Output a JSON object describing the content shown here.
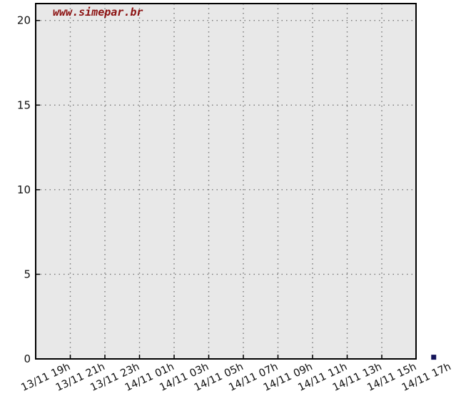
{
  "chart_data": {
    "type": "line",
    "title": "",
    "xlabel": "",
    "ylabel": "",
    "ylim": [
      0,
      21
    ],
    "yticks": [
      0,
      5,
      10,
      15,
      20
    ],
    "x_categories": [
      "13/11 19h",
      "13/11 21h",
      "13/11 23h",
      "14/11 01h",
      "14/11 03h",
      "14/11 05h",
      "14/11 07h",
      "14/11 09h",
      "14/11 11h",
      "14/11 13h",
      "14/11 15h",
      "14/11 17h"
    ],
    "grid": true,
    "series": [
      {
        "values": [
          {
            "x": "14/11 16h",
            "y": 0.1
          }
        ]
      }
    ]
  },
  "watermark": {
    "text": "www.simepar.br",
    "color": "#8b1010"
  },
  "colors": {
    "plot_bg": "#e8e8e8",
    "grid": "#777777",
    "marker": "#14145a",
    "frame": "#000000"
  }
}
